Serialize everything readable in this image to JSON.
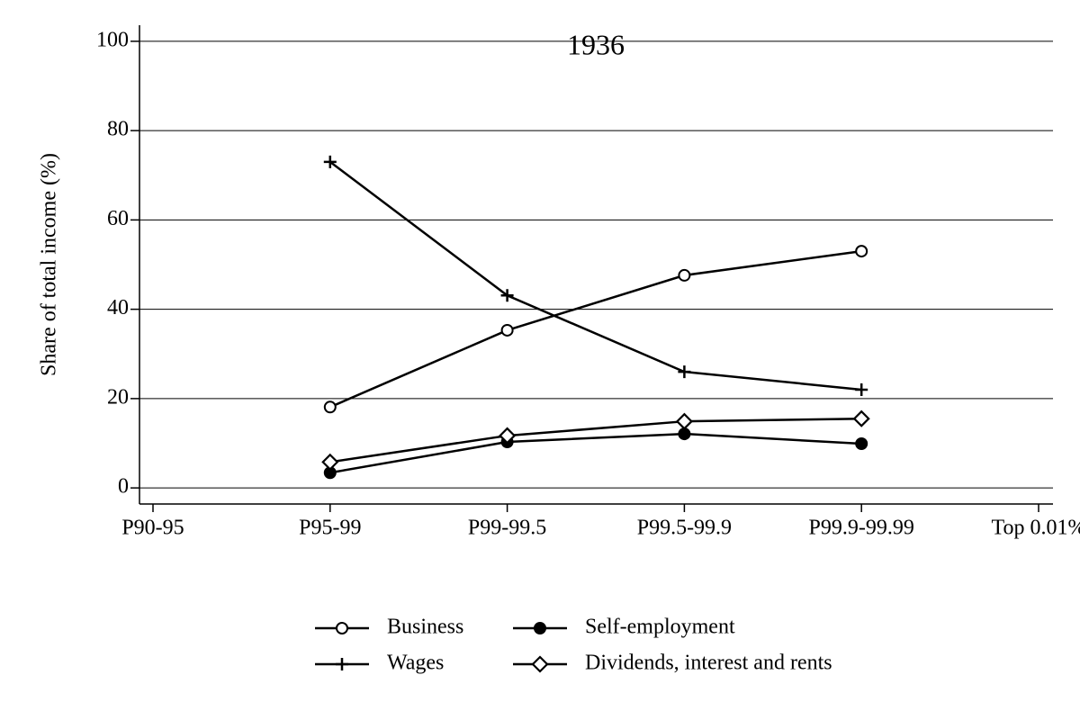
{
  "chart_data": {
    "type": "line",
    "title": "1936",
    "y_label": "Share of total income (%)",
    "categories": [
      "P90-95",
      "P95-99",
      "P99-99.5",
      "P99.5-99.9",
      "P99.9-99.99",
      "Top 0.01%"
    ],
    "series": [
      {
        "name": "Business",
        "color": "#000000",
        "marker": "circle-open",
        "values": [
          null,
          18.1,
          35.3,
          47.6,
          53.0,
          null
        ]
      },
      {
        "name": "Self-employment",
        "color": "#000000",
        "marker": "circle-filled",
        "values": [
          null,
          3.4,
          10.3,
          12.1,
          9.9,
          null
        ]
      },
      {
        "name": "Wages",
        "color": "#000000",
        "marker": "plus",
        "values": [
          null,
          73.0,
          43.1,
          26.0,
          22.0,
          null
        ]
      },
      {
        "name": "Dividends, interest and rents",
        "color": "#000000",
        "marker": "diamond-open",
        "values": [
          null,
          5.8,
          11.7,
          14.9,
          15.5,
          null
        ]
      }
    ],
    "ylim": [
      -3.6,
      103.6
    ],
    "yticks": [
      0,
      20,
      40,
      60,
      80,
      100
    ],
    "grid": true
  }
}
